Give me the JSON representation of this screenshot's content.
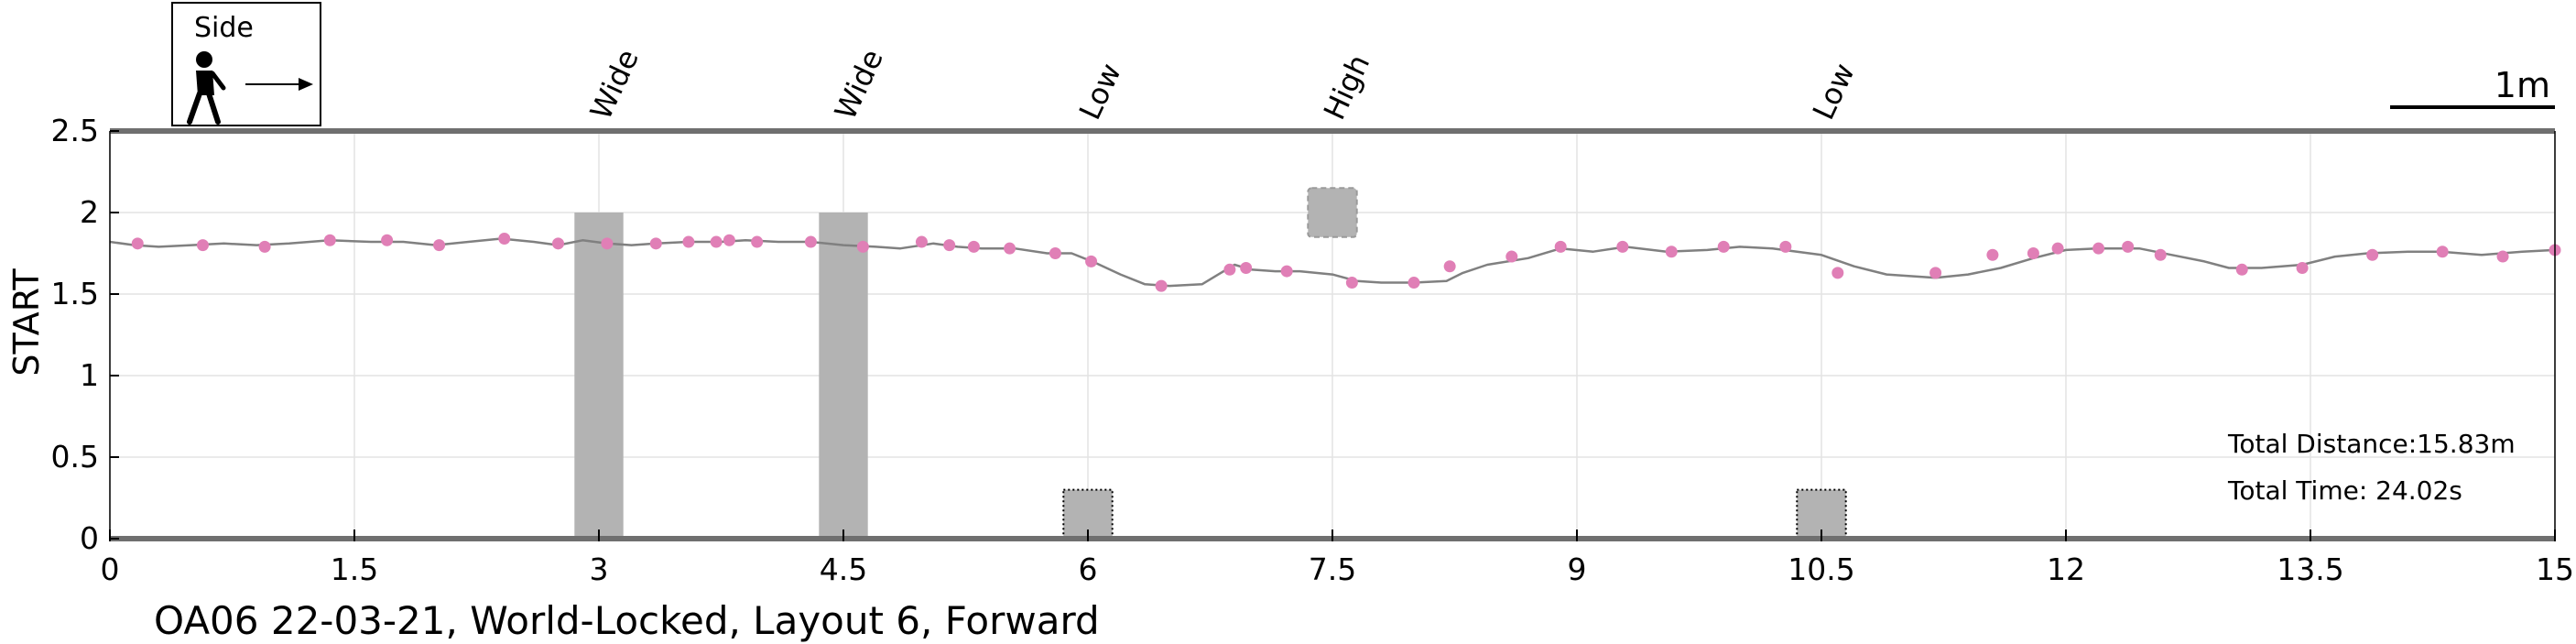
{
  "chart_data": {
    "type": "line",
    "ylabel": "START",
    "xlabel": "",
    "xlim": [
      0,
      15
    ],
    "ylim": [
      0,
      2.5
    ],
    "x_ticks": [
      "0",
      "1.5",
      "3",
      "4.5",
      "6",
      "7.5",
      "9",
      "10.5",
      "12",
      "13.5",
      "15"
    ],
    "x_tick_values": [
      0,
      1.5,
      3,
      4.5,
      6,
      7.5,
      9,
      10.5,
      12,
      13.5,
      15
    ],
    "y_ticks": [
      "0",
      "0.5",
      "1",
      "1.5",
      "2",
      "2.5"
    ],
    "y_tick_values": [
      0,
      0.5,
      1,
      1.5,
      2,
      2.5
    ],
    "grid": true,
    "line_color": "#808080",
    "marker_color": "#e07fb6",
    "obstacle_color": "#b3b3b3",
    "series": [
      {
        "line": [
          [
            0,
            1.82
          ],
          [
            0.15,
            1.8
          ],
          [
            0.3,
            1.79
          ],
          [
            0.5,
            1.8
          ],
          [
            0.7,
            1.81
          ],
          [
            0.9,
            1.8
          ],
          [
            1.1,
            1.81
          ],
          [
            1.35,
            1.83
          ],
          [
            1.6,
            1.82
          ],
          [
            1.8,
            1.82
          ],
          [
            2.0,
            1.8
          ],
          [
            2.2,
            1.82
          ],
          [
            2.4,
            1.84
          ],
          [
            2.6,
            1.82
          ],
          [
            2.75,
            1.8
          ],
          [
            2.9,
            1.83
          ],
          [
            3.05,
            1.81
          ],
          [
            3.2,
            1.8
          ],
          [
            3.35,
            1.81
          ],
          [
            3.55,
            1.82
          ],
          [
            3.75,
            1.82
          ],
          [
            3.9,
            1.83
          ],
          [
            4.1,
            1.82
          ],
          [
            4.3,
            1.82
          ],
          [
            4.5,
            1.8
          ],
          [
            4.7,
            1.79
          ],
          [
            4.85,
            1.78
          ],
          [
            5.05,
            1.81
          ],
          [
            5.2,
            1.79
          ],
          [
            5.35,
            1.78
          ],
          [
            5.55,
            1.78
          ],
          [
            5.75,
            1.75
          ],
          [
            5.9,
            1.75
          ],
          [
            6.05,
            1.69
          ],
          [
            6.2,
            1.62
          ],
          [
            6.35,
            1.56
          ],
          [
            6.5,
            1.55
          ],
          [
            6.7,
            1.56
          ],
          [
            6.8,
            1.62
          ],
          [
            6.9,
            1.68
          ],
          [
            7.0,
            1.65
          ],
          [
            7.15,
            1.64
          ],
          [
            7.3,
            1.64
          ],
          [
            7.5,
            1.62
          ],
          [
            7.65,
            1.58
          ],
          [
            7.8,
            1.57
          ],
          [
            8.0,
            1.57
          ],
          [
            8.2,
            1.58
          ],
          [
            8.3,
            1.63
          ],
          [
            8.45,
            1.68
          ],
          [
            8.7,
            1.72
          ],
          [
            8.9,
            1.78
          ],
          [
            9.1,
            1.76
          ],
          [
            9.3,
            1.79
          ],
          [
            9.55,
            1.76
          ],
          [
            9.8,
            1.77
          ],
          [
            10.0,
            1.79
          ],
          [
            10.2,
            1.78
          ],
          [
            10.35,
            1.76
          ],
          [
            10.5,
            1.74
          ],
          [
            10.7,
            1.67
          ],
          [
            10.9,
            1.62
          ],
          [
            11.2,
            1.6
          ],
          [
            11.4,
            1.62
          ],
          [
            11.6,
            1.66
          ],
          [
            11.8,
            1.72
          ],
          [
            12.0,
            1.77
          ],
          [
            12.2,
            1.78
          ],
          [
            12.45,
            1.78
          ],
          [
            12.65,
            1.74
          ],
          [
            12.85,
            1.7
          ],
          [
            13.0,
            1.66
          ],
          [
            13.2,
            1.66
          ],
          [
            13.45,
            1.68
          ],
          [
            13.65,
            1.73
          ],
          [
            13.85,
            1.75
          ],
          [
            14.1,
            1.76
          ],
          [
            14.3,
            1.76
          ],
          [
            14.55,
            1.74
          ],
          [
            14.8,
            1.76
          ],
          [
            15.0,
            1.77
          ]
        ],
        "points": [
          [
            0.17,
            1.81
          ],
          [
            0.57,
            1.8
          ],
          [
            0.95,
            1.79
          ],
          [
            1.35,
            1.83
          ],
          [
            1.7,
            1.83
          ],
          [
            2.02,
            1.8
          ],
          [
            2.42,
            1.84
          ],
          [
            2.75,
            1.81
          ],
          [
            3.05,
            1.81
          ],
          [
            3.35,
            1.81
          ],
          [
            3.55,
            1.82
          ],
          [
            3.72,
            1.82
          ],
          [
            3.8,
            1.83
          ],
          [
            3.97,
            1.82
          ],
          [
            4.3,
            1.82
          ],
          [
            4.62,
            1.79
          ],
          [
            4.98,
            1.82
          ],
          [
            5.15,
            1.8
          ],
          [
            5.3,
            1.79
          ],
          [
            5.52,
            1.78
          ],
          [
            5.8,
            1.75
          ],
          [
            6.02,
            1.7
          ],
          [
            6.45,
            1.55
          ],
          [
            6.87,
            1.65
          ],
          [
            6.97,
            1.66
          ],
          [
            7.22,
            1.64
          ],
          [
            7.62,
            1.57
          ],
          [
            8.0,
            1.57
          ],
          [
            8.22,
            1.67
          ],
          [
            8.6,
            1.73
          ],
          [
            8.9,
            1.79
          ],
          [
            9.28,
            1.79
          ],
          [
            9.58,
            1.76
          ],
          [
            9.9,
            1.79
          ],
          [
            10.28,
            1.79
          ],
          [
            10.6,
            1.63
          ],
          [
            11.2,
            1.63
          ],
          [
            11.55,
            1.74
          ],
          [
            11.8,
            1.75
          ],
          [
            11.95,
            1.78
          ],
          [
            12.2,
            1.78
          ],
          [
            12.38,
            1.79
          ],
          [
            12.58,
            1.74
          ],
          [
            13.08,
            1.65
          ],
          [
            13.45,
            1.66
          ],
          [
            13.88,
            1.74
          ],
          [
            14.31,
            1.76
          ],
          [
            14.68,
            1.73
          ],
          [
            15.0,
            1.77
          ]
        ]
      }
    ],
    "obstacles": [
      {
        "label": "Wide",
        "x_center": 3.0,
        "width": 0.3,
        "y_bottom": 0,
        "y_top": 2.0,
        "style": "solid"
      },
      {
        "label": "Wide",
        "x_center": 4.5,
        "width": 0.3,
        "y_bottom": 0,
        "y_top": 2.0,
        "style": "solid"
      },
      {
        "label": "Low",
        "x_center": 6.0,
        "width": 0.3,
        "y_bottom": 0,
        "y_top": 0.3,
        "style": "dotted"
      },
      {
        "label": "High",
        "x_center": 7.5,
        "width": 0.3,
        "y_bottom": 1.85,
        "y_top": 2.15,
        "style": "dashed"
      },
      {
        "label": "Low",
        "x_center": 10.5,
        "width": 0.3,
        "y_bottom": 0,
        "y_top": 0.3,
        "style": "dotted"
      }
    ],
    "annotations": {
      "total_distance": "Total Distance:15.83m",
      "total_time": "Total Time: 24.02s",
      "scale_bar": "1m",
      "legend_side": "Side"
    }
  },
  "footer_title": "OA06 22-03-21, World-Locked, Layout 6, Forward"
}
